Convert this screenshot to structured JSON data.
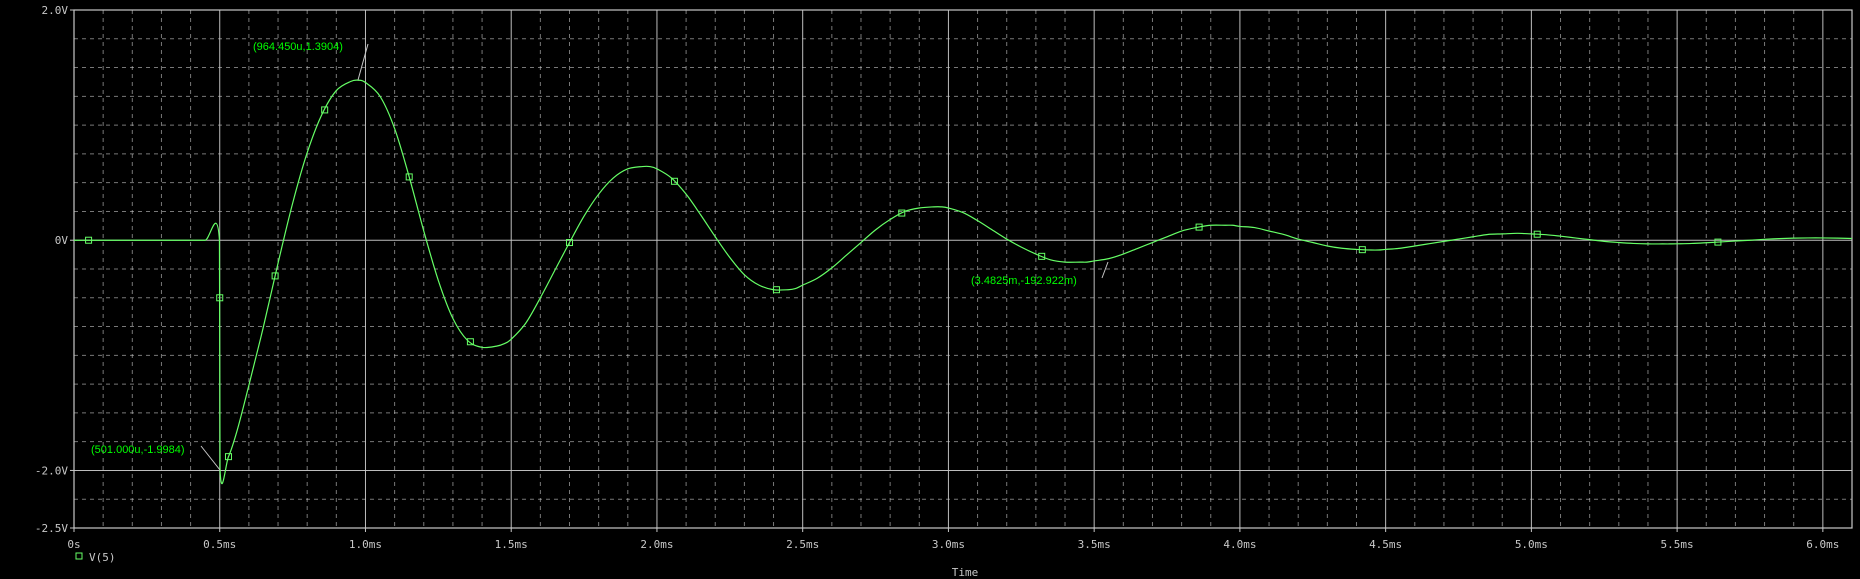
{
  "colors": {
    "background": "#000000",
    "frame": "#c8c8c8",
    "grid": "#c8c8c8",
    "trace": "#66ff66",
    "annotation": "#00ff00",
    "text": "#c8c8c8"
  },
  "chart_data": {
    "type": "line",
    "title": "",
    "xlabel": "Time",
    "ylabel": "",
    "xlim": [
      0,
      6.1
    ],
    "ylim": [
      -2.5,
      2.0
    ],
    "grid": true,
    "legend_position": "bottom-left",
    "x_unit": "ms",
    "y_unit": "V",
    "x_ticks": [
      {
        "value": 0,
        "label": "0s"
      },
      {
        "value": 0.5,
        "label": "0.5ms"
      },
      {
        "value": 1.0,
        "label": "1.0ms"
      },
      {
        "value": 1.5,
        "label": "1.5ms"
      },
      {
        "value": 2.0,
        "label": "2.0ms"
      },
      {
        "value": 2.5,
        "label": "2.5ms"
      },
      {
        "value": 3.0,
        "label": "3.0ms"
      },
      {
        "value": 3.5,
        "label": "3.5ms"
      },
      {
        "value": 4.0,
        "label": "4.0ms"
      },
      {
        "value": 4.5,
        "label": "4.5ms"
      },
      {
        "value": 5.0,
        "label": "5.0ms"
      },
      {
        "value": 5.5,
        "label": "5.5ms"
      },
      {
        "value": 6.0,
        "label": "6.0ms"
      }
    ],
    "y_ticks": [
      {
        "value": 2.0,
        "label": "2.0V"
      },
      {
        "value": 0,
        "label": "0V"
      },
      {
        "value": -2.0,
        "label": "-2.0V"
      },
      {
        "value": -2.5,
        "label": "-2.5V"
      }
    ],
    "series": [
      {
        "name": "V(5)",
        "x": [
          0.0,
          0.05,
          0.1,
          0.15,
          0.2,
          0.25,
          0.3,
          0.35,
          0.4,
          0.45,
          0.499,
          0.501,
          0.53,
          0.56,
          0.6,
          0.65,
          0.7,
          0.75,
          0.8,
          0.85,
          0.9,
          0.95,
          0.975,
          1.0,
          1.05,
          1.1,
          1.15,
          1.2,
          1.25,
          1.3,
          1.35,
          1.4,
          1.45,
          1.475,
          1.5,
          1.55,
          1.6,
          1.65,
          1.7,
          1.75,
          1.8,
          1.85,
          1.9,
          1.95,
          1.975,
          2.0,
          2.05,
          2.1,
          2.15,
          2.2,
          2.25,
          2.3,
          2.35,
          2.4,
          2.45,
          2.475,
          2.5,
          2.55,
          2.6,
          2.65,
          2.7,
          2.75,
          2.8,
          2.85,
          2.9,
          2.95,
          2.975,
          3.0,
          3.05,
          3.1,
          3.15,
          3.2,
          3.25,
          3.3,
          3.35,
          3.4,
          3.45,
          3.475,
          3.5,
          3.55,
          3.6,
          3.65,
          3.7,
          3.75,
          3.8,
          3.85,
          3.9,
          3.95,
          3.975,
          4.0,
          4.05,
          4.1,
          4.15,
          4.2,
          4.25,
          4.3,
          4.35,
          4.4,
          4.45,
          4.475,
          4.5,
          4.55,
          4.6,
          4.65,
          4.7,
          4.75,
          4.8,
          4.85,
          4.9,
          4.95,
          4.975,
          5.0,
          5.05,
          5.1,
          5.15,
          5.2,
          5.25,
          5.3,
          5.35,
          5.4,
          5.45,
          5.475,
          5.5,
          5.55,
          5.6,
          5.65,
          5.7,
          5.75,
          5.8,
          5.85,
          5.9,
          5.95,
          6.0,
          6.05,
          6.1
        ],
        "values": [
          0,
          0,
          0,
          0,
          0,
          0,
          0,
          0,
          0,
          0,
          0,
          -1.99,
          -1.88,
          -1.65,
          -1.26,
          -0.75,
          -0.2,
          0.32,
          0.76,
          1.09,
          1.3,
          1.38,
          1.39,
          1.37,
          1.25,
          0.97,
          0.55,
          0.08,
          -0.35,
          -0.68,
          -0.87,
          -0.93,
          -0.92,
          -0.9,
          -0.86,
          -0.72,
          -0.5,
          -0.26,
          -0.02,
          0.21,
          0.4,
          0.54,
          0.62,
          0.64,
          0.64,
          0.62,
          0.54,
          0.4,
          0.22,
          0.03,
          -0.15,
          -0.3,
          -0.39,
          -0.43,
          -0.43,
          -0.42,
          -0.39,
          -0.33,
          -0.24,
          -0.13,
          -0.02,
          0.09,
          0.18,
          0.25,
          0.28,
          0.29,
          0.29,
          0.28,
          0.24,
          0.17,
          0.09,
          0.01,
          -0.06,
          -0.12,
          -0.17,
          -0.19,
          -0.19,
          -0.19,
          -0.18,
          -0.16,
          -0.12,
          -0.07,
          -0.02,
          0.03,
          0.08,
          0.11,
          0.13,
          0.13,
          0.13,
          0.12,
          0.11,
          0.08,
          0.05,
          0.01,
          -0.02,
          -0.05,
          -0.07,
          -0.08,
          -0.085,
          -0.085,
          -0.08,
          -0.07,
          -0.05,
          -0.03,
          -0.01,
          0.01,
          0.03,
          0.05,
          0.055,
          0.06,
          0.058,
          0.055,
          0.048,
          0.035,
          0.02,
          0.005,
          -0.01,
          -0.02,
          -0.028,
          -0.032,
          -0.032,
          -0.032,
          -0.031,
          -0.028,
          -0.022,
          -0.015,
          -0.007,
          0.0,
          0.008,
          0.014,
          0.018,
          0.02,
          0.02,
          0.018,
          0.015
        ],
        "markers_x": [
          0.05,
          0.5,
          0.53,
          0.69,
          0.86,
          1.15,
          1.36,
          1.7,
          2.06,
          2.41,
          2.84,
          3.32,
          3.86,
          4.42,
          5.02,
          5.64
        ]
      }
    ],
    "annotations": [
      {
        "label": "(964.450u,1.3904)",
        "x": 0.96445,
        "y": 1.3904
      },
      {
        "label": "(501.000u,-1.9984)",
        "x": 0.501,
        "y": -1.9984
      },
      {
        "label": "(3.4825m,-192.922m)",
        "x": 3.4825,
        "y": -0.192922
      }
    ]
  }
}
